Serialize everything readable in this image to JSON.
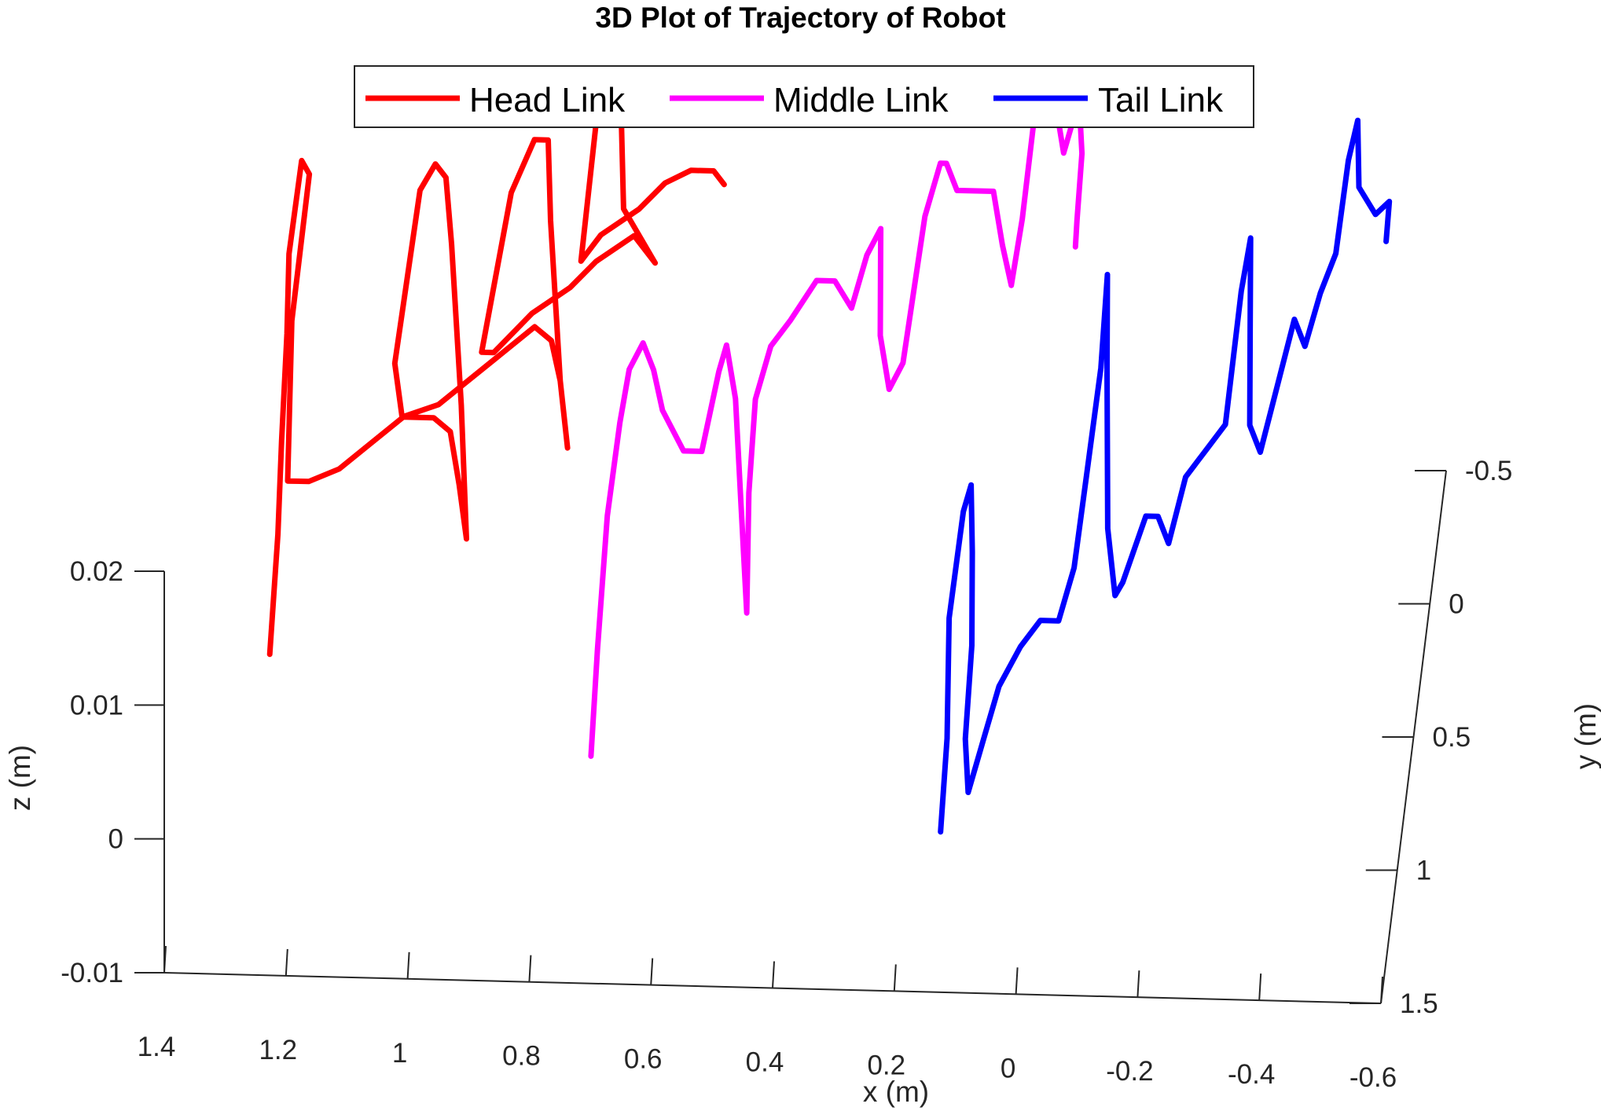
{
  "chart_data": {
    "type": "line",
    "projection": "3d",
    "title": "3D Plot of Trajectory of Robot",
    "xlabel": "x (m)",
    "ylabel": "y (m)",
    "zlabel": "z (m)",
    "xlim": [
      1.4,
      -0.6
    ],
    "ylim": [
      -0.5,
      1.5
    ],
    "zlim": [
      -0.01,
      0.02
    ],
    "x_ticks": [
      "1.4",
      "1.2",
      "1",
      "0.8",
      "0.6",
      "0.4",
      "0.2",
      "0",
      "-0.2",
      "-0.4",
      "-0.6"
    ],
    "y_ticks": [
      "-0.5",
      "0",
      "0.5",
      "1",
      "1.5"
    ],
    "z_ticks": [
      "0.02",
      "0.01",
      "0",
      "-0.01"
    ],
    "grid": false,
    "legend_position": "top-center",
    "series": [
      {
        "name": "Head Link",
        "color": "#ff0000",
        "points": [
          [
            1.24,
            1.25,
            0.009
          ],
          [
            1.24,
            1.0,
            0.013
          ],
          [
            1.25,
            0.7,
            0.014
          ],
          [
            1.26,
            0.35,
            0.015
          ],
          [
            1.27,
            0.1,
            0.016
          ],
          [
            1.26,
            -0.1,
            0.019
          ],
          [
            1.25,
            -0.15,
            0.017
          ],
          [
            1.26,
            0.2,
            0.013
          ],
          [
            1.24,
            0.7,
            0.011
          ],
          [
            1.2,
            0.8,
            0.013
          ],
          [
            1.15,
            0.8,
            0.014
          ],
          [
            1.1,
            0.75,
            0.015
          ],
          [
            1.05,
            0.7,
            0.016
          ],
          [
            1.0,
            0.7,
            0.016
          ],
          [
            0.97,
            0.75,
            0.016
          ],
          [
            0.95,
            0.85,
            0.014
          ],
          [
            0.93,
            1.0,
            0.013
          ],
          [
            0.96,
            0.6,
            0.015
          ],
          [
            1.0,
            0.15,
            0.018
          ],
          [
            1.02,
            -0.05,
            0.019
          ],
          [
            1.04,
            -0.1,
            0.019
          ],
          [
            1.06,
            0.0,
            0.019
          ],
          [
            1.08,
            0.4,
            0.014
          ],
          [
            1.06,
            0.55,
            0.013
          ],
          [
            1.0,
            0.55,
            0.014
          ],
          [
            0.95,
            0.5,
            0.015
          ],
          [
            0.9,
            0.45,
            0.016
          ],
          [
            0.85,
            0.4,
            0.017
          ],
          [
            0.82,
            0.45,
            0.017
          ],
          [
            0.8,
            0.55,
            0.016
          ],
          [
            0.78,
            0.7,
            0.014
          ],
          [
            0.8,
            0.55,
            0.016
          ],
          [
            0.84,
            0.1,
            0.019
          ],
          [
            0.86,
            -0.2,
            0.019
          ],
          [
            0.88,
            -0.15,
            0.02
          ],
          [
            0.91,
            0.0,
            0.019
          ],
          [
            0.94,
            0.35,
            0.014
          ],
          [
            0.92,
            0.35,
            0.014
          ],
          [
            0.86,
            0.3,
            0.016
          ],
          [
            0.8,
            0.25,
            0.017
          ],
          [
            0.76,
            0.2,
            0.018
          ],
          [
            0.7,
            0.15,
            0.019
          ],
          [
            0.68,
            0.2,
            0.019
          ],
          [
            0.66,
            0.25,
            0.019
          ],
          [
            0.72,
            0.1,
            0.02
          ],
          [
            0.74,
            -0.2,
            0.021
          ],
          [
            0.76,
            -0.3,
            0.022
          ],
          [
            0.78,
            -0.25,
            0.021
          ],
          [
            0.79,
            0.1,
            0.016
          ],
          [
            0.76,
            0.05,
            0.017
          ],
          [
            0.7,
            0.0,
            0.018
          ],
          [
            0.66,
            -0.05,
            0.019
          ],
          [
            0.62,
            -0.1,
            0.019
          ],
          [
            0.58,
            -0.05,
            0.02
          ],
          [
            0.56,
            0.0,
            0.02
          ]
        ]
      },
      {
        "name": "Middle Link",
        "color": "#ff00ff",
        "points": [
          [
            0.72,
            1.1,
            -0.001
          ],
          [
            0.72,
            0.9,
            0.003
          ],
          [
            0.72,
            0.6,
            0.007
          ],
          [
            0.71,
            0.4,
            0.01
          ],
          [
            0.7,
            0.3,
            0.012
          ],
          [
            0.68,
            0.25,
            0.013
          ],
          [
            0.66,
            0.3,
            0.012
          ],
          [
            0.64,
            0.4,
            0.011
          ],
          [
            0.6,
            0.5,
            0.01
          ],
          [
            0.57,
            0.5,
            0.01
          ],
          [
            0.55,
            0.35,
            0.013
          ],
          [
            0.54,
            0.3,
            0.014
          ],
          [
            0.52,
            0.4,
            0.012
          ],
          [
            0.5,
            0.6,
            0.008
          ],
          [
            0.48,
            0.8,
            0.004
          ],
          [
            0.48,
            0.8,
            0.004
          ],
          [
            0.49,
            0.55,
            0.008
          ],
          [
            0.49,
            0.35,
            0.011
          ],
          [
            0.47,
            0.25,
            0.013
          ],
          [
            0.44,
            0.2,
            0.014
          ],
          [
            0.4,
            0.15,
            0.016
          ],
          [
            0.37,
            0.15,
            0.016
          ],
          [
            0.34,
            0.2,
            0.015
          ],
          [
            0.32,
            0.1,
            0.017
          ],
          [
            0.3,
            0.05,
            0.018
          ],
          [
            0.29,
            0.25,
            0.014
          ],
          [
            0.27,
            0.35,
            0.012
          ],
          [
            0.25,
            0.3,
            0.013
          ],
          [
            0.23,
            0.0,
            0.018
          ],
          [
            0.21,
            -0.1,
            0.02
          ],
          [
            0.2,
            -0.1,
            0.02
          ],
          [
            0.18,
            -0.05,
            0.019
          ],
          [
            0.12,
            -0.05,
            0.019
          ],
          [
            0.1,
            0.05,
            0.017
          ],
          [
            0.08,
            0.15,
            0.016
          ],
          [
            0.07,
            0.0,
            0.018
          ],
          [
            0.06,
            -0.25,
            0.022
          ],
          [
            0.05,
            -0.3,
            0.023
          ],
          [
            0.04,
            -0.25,
            0.022
          ],
          [
            0.02,
            -0.2,
            0.021
          ],
          [
            0.01,
            -0.15,
            0.02
          ],
          [
            0.0,
            -0.2,
            0.021
          ],
          [
            -0.01,
            -0.25,
            0.022
          ],
          [
            -0.02,
            -0.15,
            0.02
          ],
          [
            -0.02,
            0.0,
            0.018
          ],
          [
            -0.02,
            0.05,
            0.017
          ]
        ]
      },
      {
        "name": "Tail Link",
        "color": "#0000ff",
        "points": [
          [
            0.14,
            1.2,
            -0.004
          ],
          [
            0.14,
            1.0,
            -0.001
          ],
          [
            0.15,
            0.75,
            0.003
          ],
          [
            0.14,
            0.5,
            0.006
          ],
          [
            0.13,
            0.45,
            0.007
          ],
          [
            0.12,
            0.6,
            0.005
          ],
          [
            0.11,
            0.8,
            0.002
          ],
          [
            0.11,
            1.0,
            -0.001
          ],
          [
            0.1,
            1.1,
            -0.003
          ],
          [
            0.08,
            1.0,
            -0.001
          ],
          [
            0.06,
            0.9,
            0.001
          ],
          [
            0.03,
            0.8,
            0.002
          ],
          [
            0.0,
            0.75,
            0.003
          ],
          [
            -0.03,
            0.75,
            0.003
          ],
          [
            -0.05,
            0.65,
            0.005
          ],
          [
            -0.06,
            0.45,
            0.008
          ],
          [
            -0.07,
            0.2,
            0.011
          ],
          [
            -0.07,
            0.0,
            0.014
          ],
          [
            -0.08,
            0.2,
            0.011
          ],
          [
            -0.1,
            0.55,
            0.006
          ],
          [
            -0.12,
            0.7,
            0.004
          ],
          [
            -0.13,
            0.65,
            0.004
          ],
          [
            -0.16,
            0.5,
            0.006
          ],
          [
            -0.18,
            0.5,
            0.006
          ],
          [
            -0.2,
            0.55,
            0.005
          ],
          [
            -0.22,
            0.4,
            0.007
          ],
          [
            -0.25,
            0.35,
            0.008
          ],
          [
            -0.28,
            0.3,
            0.009
          ],
          [
            -0.29,
            0.0,
            0.013
          ],
          [
            -0.3,
            -0.1,
            0.015
          ],
          [
            -0.31,
            0.1,
            0.012
          ],
          [
            -0.32,
            0.3,
            0.009
          ],
          [
            -0.34,
            0.35,
            0.008
          ],
          [
            -0.36,
            0.2,
            0.01
          ],
          [
            -0.38,
            0.05,
            0.012
          ],
          [
            -0.4,
            0.1,
            0.011
          ],
          [
            -0.42,
            0.0,
            0.013
          ],
          [
            -0.44,
            -0.1,
            0.014
          ],
          [
            -0.45,
            -0.3,
            0.017
          ],
          [
            -0.46,
            -0.4,
            0.018
          ],
          [
            -0.47,
            -0.25,
            0.016
          ],
          [
            -0.5,
            -0.2,
            0.015
          ],
          [
            -0.52,
            -0.25,
            0.015
          ],
          [
            -0.52,
            -0.15,
            0.014
          ]
        ]
      }
    ]
  }
}
